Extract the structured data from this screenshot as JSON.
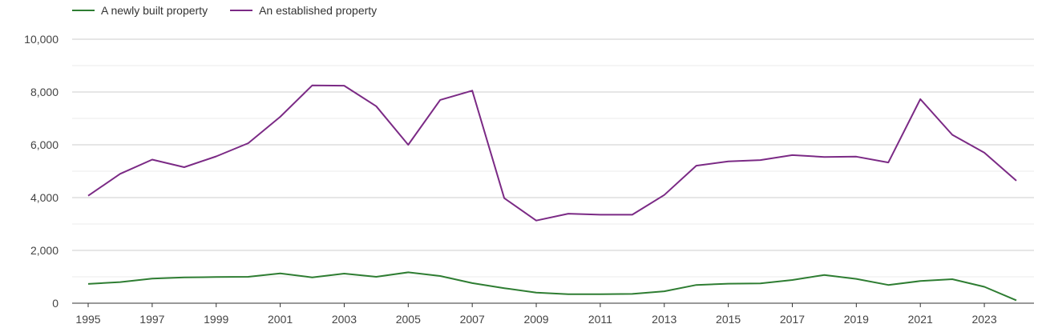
{
  "chart_data": {
    "type": "line",
    "title": "",
    "xlabel": "",
    "ylabel": "",
    "x": [
      1995,
      1996,
      1997,
      1998,
      1999,
      2000,
      2001,
      2002,
      2003,
      2004,
      2005,
      2006,
      2007,
      2008,
      2009,
      2010,
      2011,
      2012,
      2013,
      2014,
      2015,
      2016,
      2017,
      2018,
      2019,
      2020,
      2021,
      2022,
      2023,
      2024
    ],
    "x_tick_labels": [
      "1995",
      "1997",
      "1999",
      "2001",
      "2003",
      "2005",
      "2007",
      "2009",
      "2011",
      "2013",
      "2015",
      "2017",
      "2019",
      "2021",
      "2023"
    ],
    "y_tick_labels": [
      "0",
      "2,000",
      "4,000",
      "6,000",
      "8,000",
      "10,000"
    ],
    "ylim": [
      0,
      10000
    ],
    "legend_position": "top-left",
    "grid": true,
    "series": [
      {
        "name": "A newly built property",
        "color": "#2e7d32",
        "values": [
          730,
          800,
          930,
          980,
          990,
          1000,
          1130,
          980,
          1120,
          1000,
          1170,
          1030,
          760,
          570,
          400,
          340,
          340,
          350,
          450,
          690,
          740,
          750,
          880,
          1070,
          920,
          690,
          840,
          910,
          620,
          110
        ]
      },
      {
        "name": "An established property",
        "color": "#7b2a85",
        "values": [
          4070,
          4900,
          5440,
          5150,
          5560,
          6060,
          7060,
          8250,
          8240,
          7460,
          6000,
          7700,
          8050,
          3980,
          3130,
          3390,
          3350,
          3350,
          4100,
          5210,
          5370,
          5420,
          5610,
          5540,
          5550,
          5330,
          7730,
          6380,
          5700,
          4640
        ]
      }
    ]
  }
}
